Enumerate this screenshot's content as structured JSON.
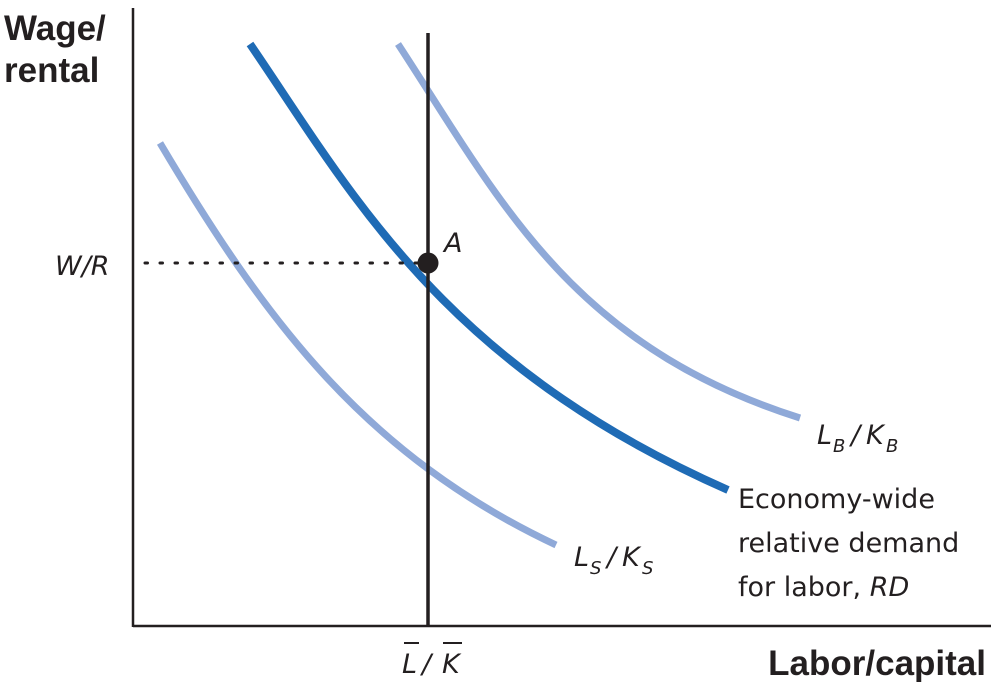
{
  "y_axis_title_line1": "Wage/",
  "y_axis_title_line2": "rental",
  "x_axis_title": "Labor/capital",
  "y_tick_label": "W/R",
  "x_tick_label_L": "L",
  "x_tick_label_slash": "/",
  "x_tick_label_K": "K",
  "point_label": "A",
  "curves": {
    "lb_kb": {
      "main_L": "L",
      "sub_B": "B",
      "slash": "/",
      "main_K": "K",
      "sub_B2": "B"
    },
    "ls_ks": {
      "main_L": "L",
      "sub_S": "S",
      "slash": "/",
      "main_K": "K",
      "sub_S2": "S"
    },
    "rd": {
      "line1": "Economy-wide",
      "line2": "relative demand",
      "line3_prefix": "for labor, ",
      "line3_italic": "RD"
    }
  },
  "colors": {
    "light_curve": "#8fa9d8",
    "dark_curve": "#1f6bb5",
    "axis": "#231f20"
  }
}
